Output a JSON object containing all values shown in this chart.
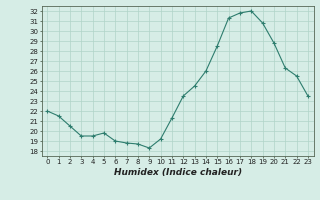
{
  "x": [
    0,
    1,
    2,
    3,
    4,
    5,
    6,
    7,
    8,
    9,
    10,
    11,
    12,
    13,
    14,
    15,
    16,
    17,
    18,
    19,
    20,
    21,
    22,
    23
  ],
  "y": [
    22.0,
    21.5,
    20.5,
    19.5,
    19.5,
    19.8,
    19.0,
    18.8,
    18.7,
    18.3,
    19.2,
    21.3,
    23.5,
    24.5,
    26.0,
    28.5,
    31.3,
    31.8,
    32.0,
    30.8,
    28.8,
    26.3,
    25.5,
    23.5
  ],
  "xlabel": "Humidex (Indice chaleur)",
  "bg_color": "#d6ede6",
  "line_color": "#2e7d6e",
  "grid_color": "#b0d4c8",
  "xlim": [
    -0.5,
    23.5
  ],
  "ylim": [
    17.5,
    32.5
  ],
  "yticks": [
    18,
    19,
    20,
    21,
    22,
    23,
    24,
    25,
    26,
    27,
    28,
    29,
    30,
    31,
    32
  ],
  "xticks": [
    0,
    1,
    2,
    3,
    4,
    5,
    6,
    7,
    8,
    9,
    10,
    11,
    12,
    13,
    14,
    15,
    16,
    17,
    18,
    19,
    20,
    21,
    22,
    23
  ],
  "marker": "+",
  "linewidth": 0.8,
  "markersize": 3.5,
  "markeredgewidth": 0.8,
  "font_color": "#222222",
  "tick_fontsize": 5.0,
  "xlabel_fontsize": 6.5
}
